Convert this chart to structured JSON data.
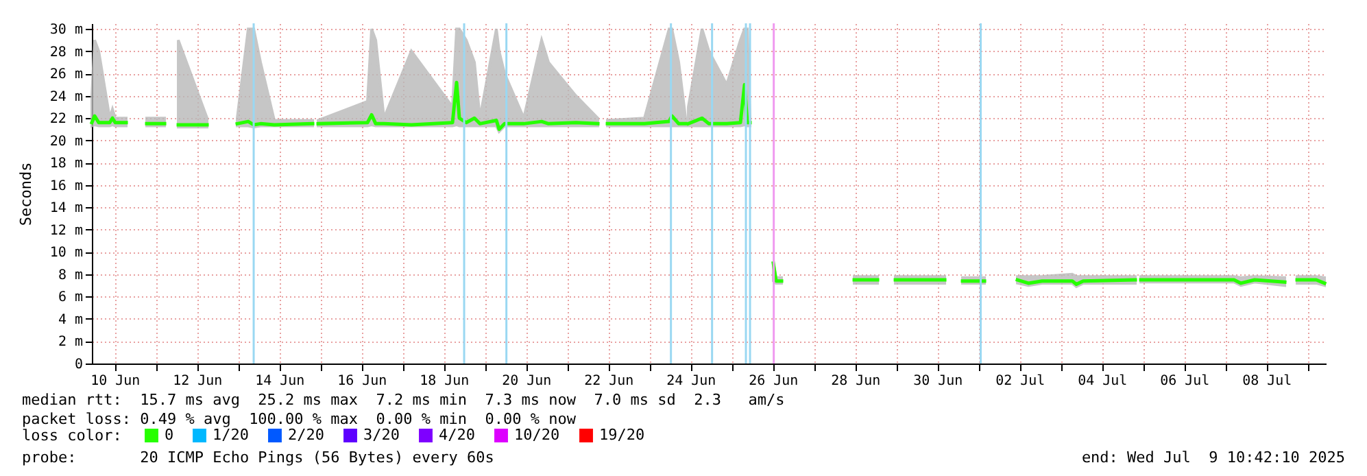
{
  "chart_data": {
    "type": "line",
    "ylabel": "Seconds",
    "legend_title": "loss color:",
    "legend": "bottom left",
    "grid": true,
    "marker": "none",
    "line_style": "solid",
    "xlim": [
      "2025-06-09T10:42",
      "2025-07-09T10:42"
    ],
    "xticks": [
      {
        "value": "2025-06-10",
        "label": "10 Jun"
      },
      {
        "value": "2025-06-11",
        "label": null
      },
      {
        "value": "2025-06-12",
        "label": "12 Jun"
      },
      {
        "value": "2025-06-13",
        "label": null
      },
      {
        "value": "2025-06-14",
        "label": "14 Jun"
      },
      {
        "value": "2025-06-15",
        "label": null
      },
      {
        "value": "2025-06-16",
        "label": "16 Jun"
      },
      {
        "value": "2025-06-17",
        "label": null
      },
      {
        "value": "2025-06-18",
        "label": "18 Jun"
      },
      {
        "value": "2025-06-19",
        "label": null
      },
      {
        "value": "2025-06-20",
        "label": "20 Jun"
      },
      {
        "value": "2025-06-21",
        "label": null
      },
      {
        "value": "2025-06-22",
        "label": "22 Jun"
      },
      {
        "value": "2025-06-23",
        "label": null
      },
      {
        "value": "2025-06-24",
        "label": "24 Jun"
      },
      {
        "value": "2025-06-25",
        "label": null
      },
      {
        "value": "2025-06-26",
        "label": "26 Jun"
      },
      {
        "value": "2025-06-27",
        "label": null
      },
      {
        "value": "2025-06-28",
        "label": "28 Jun"
      },
      {
        "value": "2025-06-29",
        "label": null
      },
      {
        "value": "2025-06-30",
        "label": "30 Jun"
      },
      {
        "value": "2025-07-01",
        "label": null
      },
      {
        "value": "2025-07-02",
        "label": "02 Jul"
      },
      {
        "value": "2025-07-03",
        "label": null
      },
      {
        "value": "2025-07-04",
        "label": "04 Jul"
      },
      {
        "value": "2025-07-05",
        "label": null
      },
      {
        "value": "2025-07-06",
        "label": "06 Jul"
      },
      {
        "value": "2025-07-07",
        "label": null
      },
      {
        "value": "2025-07-08",
        "label": "08 Jul"
      },
      {
        "value": "2025-07-09",
        "label": null
      }
    ],
    "ylim": [
      0,
      30.5
    ],
    "yticks": [
      0,
      {
        "value": 2,
        "label": "2 m"
      },
      {
        "value": 4,
        "label": "4 m"
      },
      {
        "value": 6,
        "label": "6 m"
      },
      {
        "value": 8,
        "label": "8 m"
      },
      {
        "value": 10,
        "label": "10 m"
      },
      {
        "value": 12,
        "label": "12 m"
      },
      {
        "value": 14,
        "label": "14 m"
      },
      {
        "value": 16,
        "label": "16 m"
      },
      {
        "value": 18,
        "label": "18 m"
      },
      {
        "value": 20,
        "label": "20 m"
      },
      {
        "value": 22,
        "label": "22 m"
      },
      {
        "value": 24,
        "label": "24 m"
      },
      {
        "value": 26,
        "label": "26 m"
      },
      {
        "value": 28,
        "label": "28 m"
      },
      {
        "value": 30,
        "label": "30 m"
      }
    ],
    "series": [
      {
        "name": "0",
        "color": "#26ff00",
        "x": [
          "2025-06-09T10:42",
          "2025-06-09T12:19",
          "2025-06-09T14:43",
          "2025-06-09T21:07",
          "2025-06-09T22:43",
          "2025-06-10T00:19",
          "2025-06-10T06:43",
          "2025-06-10T12:43",
          "2025-06-10T18:43",
          "2025-06-11T05:07",
          "2025-06-11T09:07",
          "2025-06-11T13:07",
          "2025-06-12T05:55",
          "2025-06-12T21:55",
          "2025-06-12T23:31",
          "2025-06-13T05:55",
          "2025-06-13T09:07",
          "2025-06-13T13:07",
          "2025-06-13T21:07",
          "2025-06-14T19:31",
          "2025-06-14T21:07",
          "2025-06-14T22:43",
          "2025-06-16T03:31",
          "2025-06-16T05:55",
          "2025-06-16T08:19",
          "2025-06-16T13:07",
          "2025-06-17T05:07",
          "2025-06-18T05:07",
          "2025-06-18T07:31",
          "2025-06-18T09:07",
          "2025-06-18T13:07",
          "2025-06-18T17:55",
          "2025-06-18T21:07",
          "2025-06-19T06:43",
          "2025-06-19T08:19",
          "2025-06-19T11:31",
          "2025-06-19T22:43",
          "2025-06-20T09:07",
          "2025-06-20T13:07",
          "2025-06-21T05:07",
          "2025-06-21T17:55",
          "2025-06-21T20:43",
          "2025-06-21T23:31",
          "2025-06-22T21:07",
          "2025-06-23T11:31",
          "2025-06-23T13:07",
          "2025-06-23T17:07",
          "2025-06-23T21:07",
          "2025-06-23T21:55",
          "2025-06-23T22:43",
          "2025-06-24T06:43",
          "2025-06-24T10:43",
          "2025-06-24T21:07",
          "2025-06-25T05:07",
          "2025-06-25T07:31",
          "2025-06-25T09:07",
          "2025-06-25T10:43",
          "2025-06-25T17:31",
          "2025-06-26T00:19",
          "2025-06-26T01:55",
          "2025-06-26T05:07",
          "2025-06-26T11:07",
          "2025-06-27T23:31",
          "2025-06-28T13:07",
          "2025-06-28T18:19",
          "2025-06-28T23:31",
          "2025-06-29T17:55",
          "2025-06-29T18:43",
          "2025-06-29T19:31",
          "2025-06-30T04:19",
          "2025-06-30T09:31",
          "2025-06-30T14:43",
          "2025-07-01T03:31",
          "2025-07-01T09:55",
          "2025-07-01T22:43",
          "2025-07-02T05:07",
          "2025-07-02T13:07",
          "2025-07-03T06:43",
          "2025-07-03T09:07",
          "2025-07-03T13:07",
          "2025-07-04T19:31",
          "2025-07-04T21:07",
          "2025-07-04T22:43",
          "2025-07-07T05:07",
          "2025-07-07T09:07",
          "2025-07-07T17:07",
          "2025-07-08T10:43",
          "2025-07-08T14:19",
          "2025-07-08T17:55",
          "2025-07-09T05:07",
          "2025-07-09T09:55"
        ],
        "values": [
          21.6,
          22.2,
          21.6,
          21.6,
          22.0,
          21.6,
          21.6,
          null,
          21.5,
          21.5,
          null,
          21.4,
          21.4,
          null,
          21.5,
          21.7,
          21.4,
          21.5,
          21.4,
          21.5,
          null,
          21.5,
          21.6,
          22.3,
          21.5,
          21.5,
          21.4,
          21.6,
          25.2,
          22.0,
          21.6,
          22.0,
          21.5,
          21.8,
          21.0,
          21.5,
          21.5,
          21.7,
          21.5,
          21.6,
          21.5,
          null,
          21.5,
          21.5,
          21.7,
          22.2,
          21.5,
          21.5,
          null,
          21.5,
          22.0,
          21.5,
          21.5,
          21.6,
          25.0,
          21.6,
          21.6,
          null,
          9.0,
          7.4,
          7.4,
          null,
          7.5,
          7.5,
          null,
          7.5,
          7.5,
          null,
          7.5,
          7.5,
          null,
          7.4,
          7.4,
          null,
          7.5,
          7.2,
          7.4,
          7.4,
          7.1,
          7.4,
          7.5,
          null,
          7.5,
          7.5,
          7.2,
          7.5,
          7.3,
          null,
          7.5,
          7.5,
          7.2
        ],
        "lower": [
          21.3,
          21.4,
          21.3,
          21.3,
          21.4,
          21.3,
          21.3,
          null,
          21.3,
          21.3,
          null,
          21.2,
          21.2,
          null,
          21.3,
          21.3,
          21.2,
          21.3,
          21.3,
          21.3,
          null,
          21.3,
          21.3,
          21.4,
          21.3,
          21.3,
          21.3,
          21.3,
          21.4,
          21.3,
          21.3,
          21.3,
          21.3,
          21.3,
          20.8,
          21.3,
          21.3,
          21.3,
          21.3,
          21.3,
          21.3,
          null,
          21.3,
          21.3,
          21.3,
          21.3,
          21.3,
          21.3,
          null,
          21.3,
          21.3,
          21.3,
          21.3,
          21.3,
          21.4,
          21.3,
          21.3,
          null,
          7.4,
          7.2,
          7.2,
          null,
          7.2,
          7.2,
          null,
          7.2,
          7.2,
          null,
          7.2,
          7.2,
          null,
          7.2,
          7.2,
          null,
          7.2,
          7.0,
          7.2,
          7.2,
          6.9,
          7.2,
          7.2,
          null,
          7.3,
          7.3,
          7.0,
          7.3,
          7.0,
          null,
          7.2,
          7.2,
          7.0
        ],
        "upper": [
          24,
          29,
          28,
          22,
          22.8,
          22,
          22,
          null,
          22,
          22,
          null,
          29,
          22,
          null,
          22,
          30,
          30,
          27,
          21.8,
          21.8,
          null,
          21.8,
          23.5,
          30,
          29,
          22,
          28,
          23,
          30,
          30,
          29,
          27,
          22,
          30,
          28,
          26,
          22,
          29,
          27,
          24,
          22,
          null,
          21.8,
          22,
          30,
          30,
          27,
          22,
          null,
          23,
          30,
          28,
          25,
          29,
          30,
          30,
          22,
          null,
          9.0,
          7.7,
          7.7,
          null,
          7.8,
          7.8,
          null,
          7.8,
          7.8,
          null,
          7.8,
          7.8,
          null,
          7.7,
          7.7,
          null,
          7.8,
          7.8,
          7.8,
          8.0,
          7.8,
          7.8,
          7.8,
          null,
          7.8,
          7.8,
          7.7,
          7.8,
          7.7,
          null,
          7.8,
          7.8,
          7.7
        ]
      },
      {
        "name": "1/20",
        "color": "#00b8ff"
      },
      {
        "name": "2/20",
        "color": "#0059ff"
      },
      {
        "name": "3/20",
        "color": "#5e00ff"
      },
      {
        "name": "4/20",
        "color": "#7e00ff"
      },
      {
        "name": "10/20",
        "color": "#dd00ff"
      },
      {
        "name": "19/20",
        "color": "#ff0000"
      }
    ],
    "ref_lines": [
      {
        "axis": "x",
        "value": "2025-06-13T09:07",
        "color": "#9ad8f2"
      },
      {
        "axis": "x",
        "value": "2025-06-18T11:55",
        "color": "#9ad8f2"
      },
      {
        "axis": "x",
        "value": "2025-06-19T12:34",
        "color": "#9ad8f2"
      },
      {
        "axis": "x",
        "value": "2025-06-23T12:34",
        "color": "#9ad8f2"
      },
      {
        "axis": "x",
        "value": "2025-06-24T12:34",
        "color": "#9ad8f2"
      },
      {
        "axis": "x",
        "value": "2025-06-25T08:19",
        "color": "#9ad8f2"
      },
      {
        "axis": "x",
        "value": "2025-06-25T10:43",
        "color": "#9ad8f2"
      },
      {
        "axis": "x",
        "value": "2025-06-26T00:34",
        "color": "#f09af0"
      },
      {
        "axis": "x",
        "value": "2025-07-01T01:19",
        "color": "#9ad8f2"
      }
    ],
    "annotations": [
      "median rtt:  15.7 ms avg  25.2 ms max  7.2 ms min  7.3 ms now  7.0 ms sd  2.3   am/s",
      "packet loss: 0.49 % avg  100.00 % max  0.00 % min  0.00 % now",
      "probe:       20 ICMP Echo Pings (56 Bytes) every 60s",
      "end: Wed Jul  9 10:42:10 2025"
    ]
  }
}
